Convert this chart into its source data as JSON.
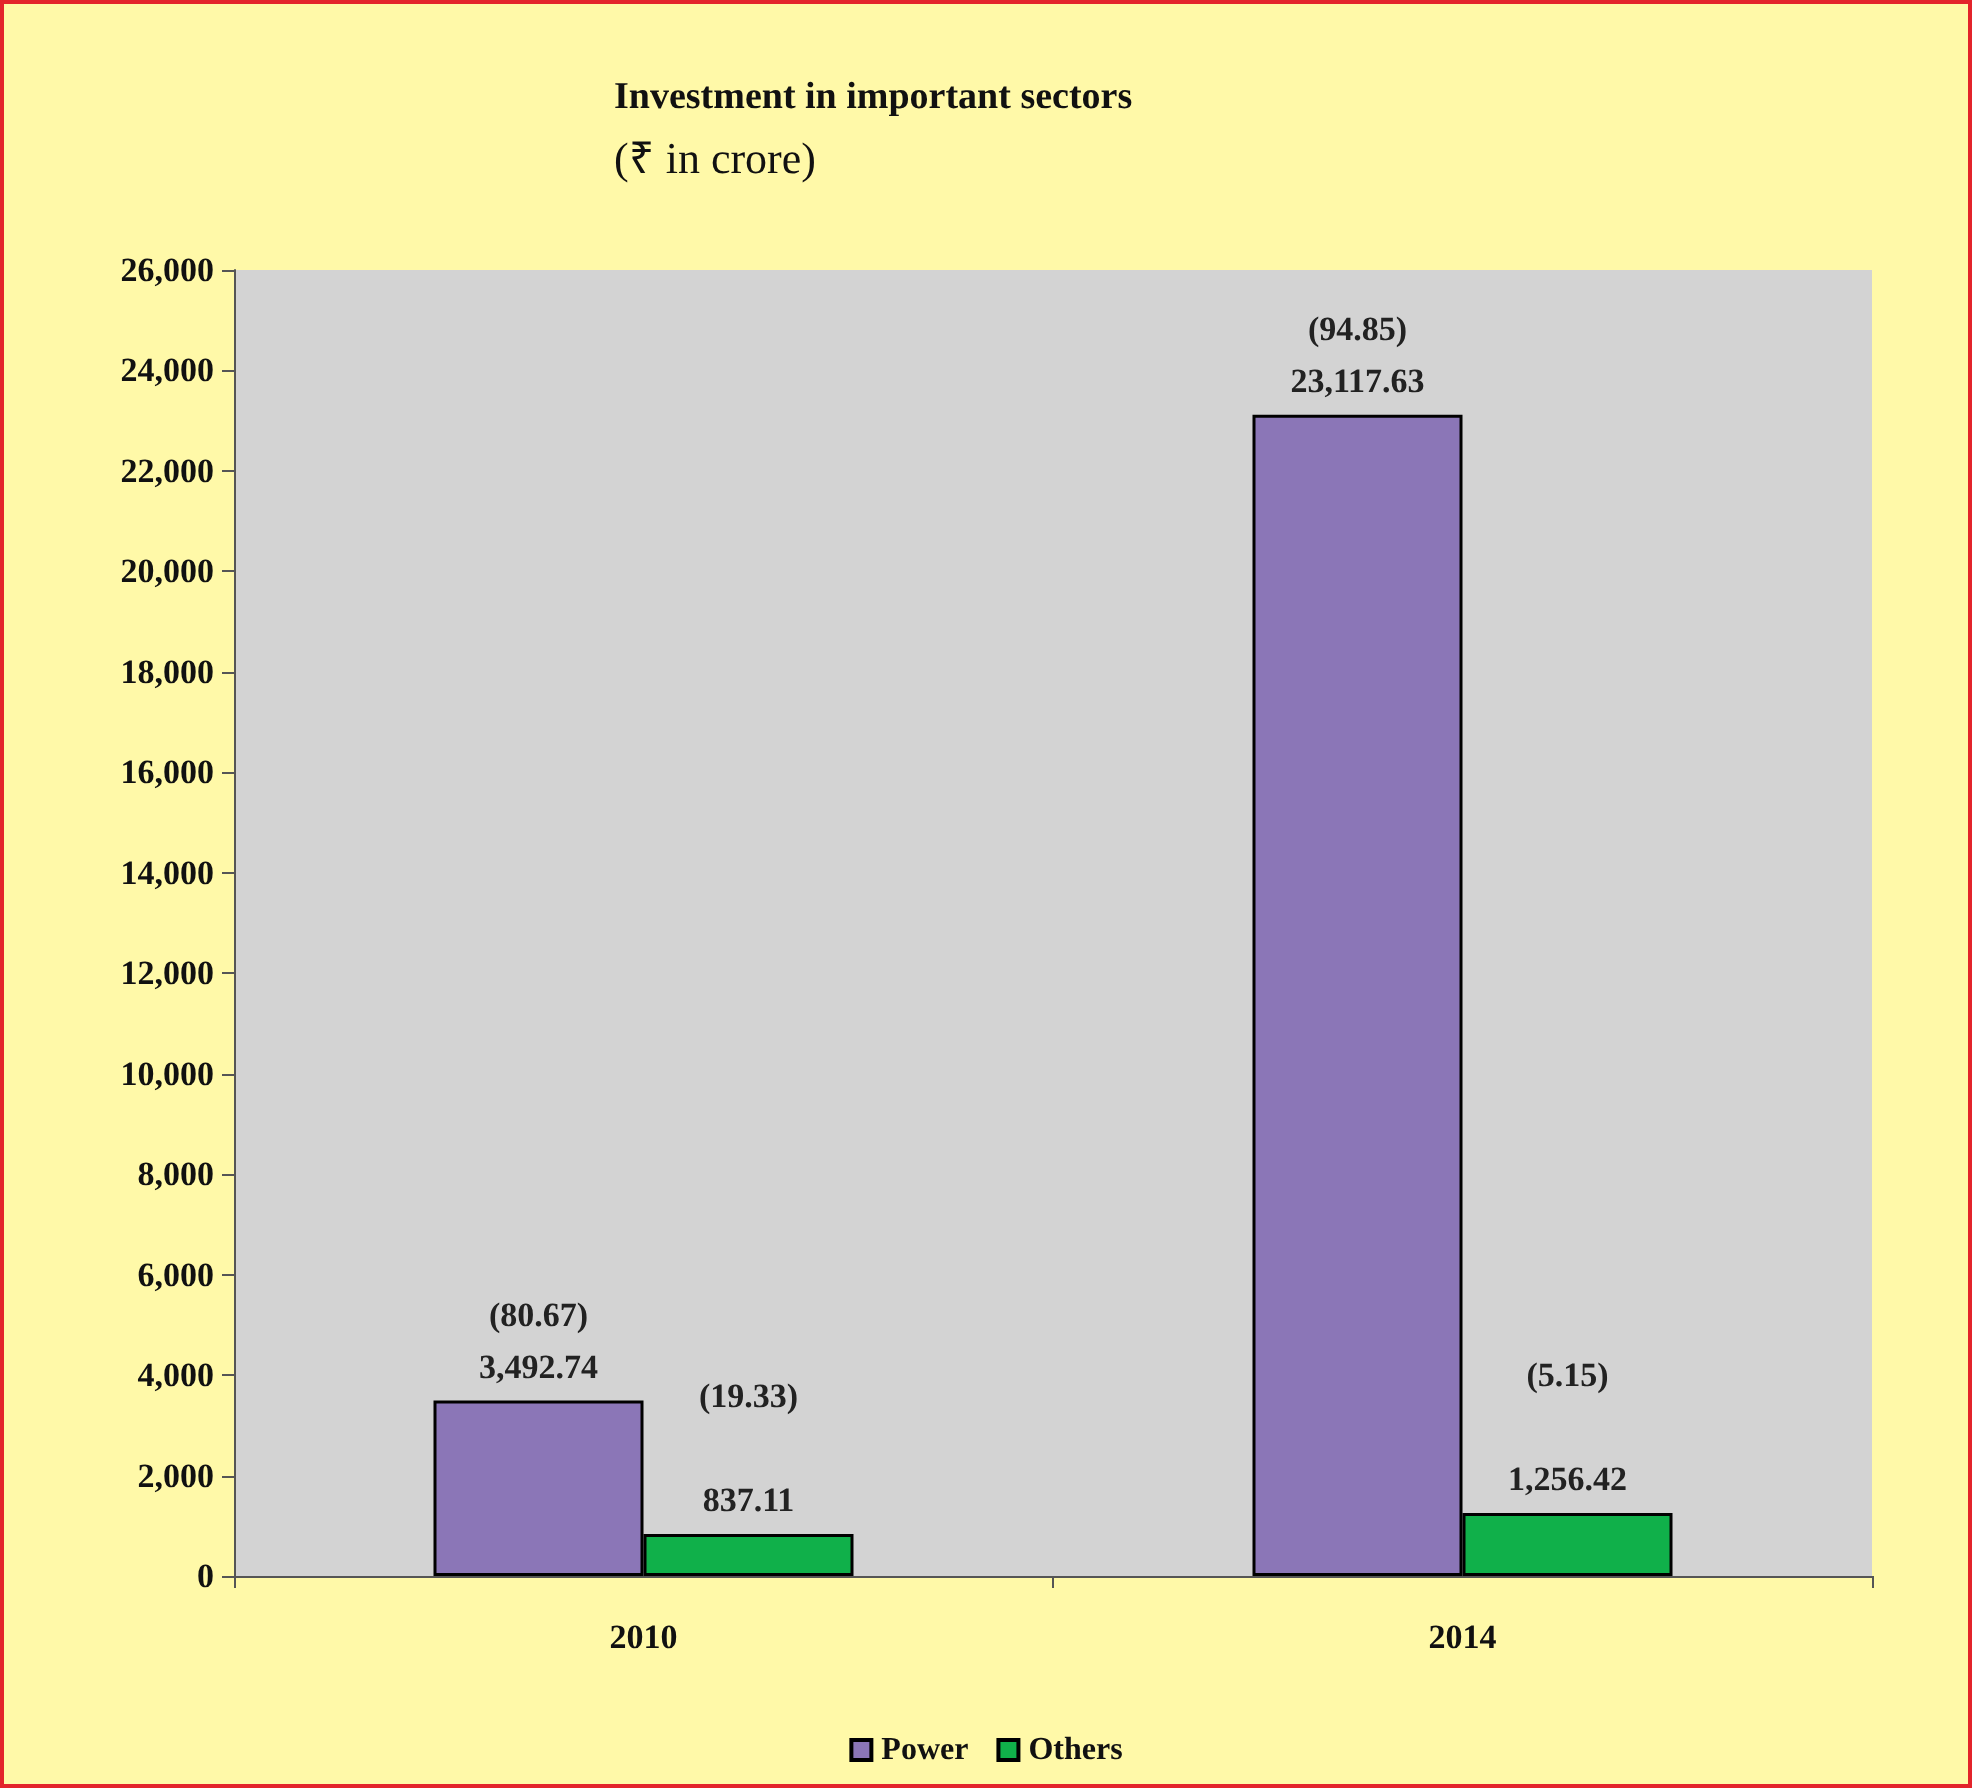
{
  "chart_data": {
    "type": "bar",
    "title": "Investment in important sectors",
    "subtitle": "(₹ in crore)",
    "categories": [
      "2010",
      "2014"
    ],
    "series": [
      {
        "name": "Power",
        "color": "#8b76b7",
        "values": [
          3492.74,
          23117.63
        ],
        "value_labels": [
          "(80.67)\n3,492.74",
          "(94.85)\n23,117.63"
        ]
      },
      {
        "name": "Others",
        "color": "#10b04a",
        "values": [
          837.11,
          1256.42
        ],
        "value_labels": [
          "(19.33)\n\n837.11",
          "(5.15)\n\n1,256.42"
        ]
      }
    ],
    "ylim": [
      0,
      26000
    ],
    "yticks": [
      0,
      {
        "value": 2000,
        "label": "2,000"
      },
      {
        "value": 4000,
        "label": "4,000"
      },
      {
        "value": 6000,
        "label": "6,000"
      },
      {
        "value": 8000,
        "label": "8,000"
      },
      {
        "value": 10000,
        "label": "10,000"
      },
      {
        "value": 12000,
        "label": "12,000"
      },
      {
        "value": 14000,
        "label": "14,000"
      },
      {
        "value": 16000,
        "label": "16,000"
      },
      {
        "value": 18000,
        "label": "18,000"
      },
      {
        "value": 20000,
        "label": "20,000"
      },
      {
        "value": 22000,
        "label": "22,000"
      },
      {
        "value": 24000,
        "label": "24,000"
      },
      {
        "value": 26000,
        "label": "26,000"
      }
    ],
    "grid": false,
    "legend": "bottom"
  }
}
